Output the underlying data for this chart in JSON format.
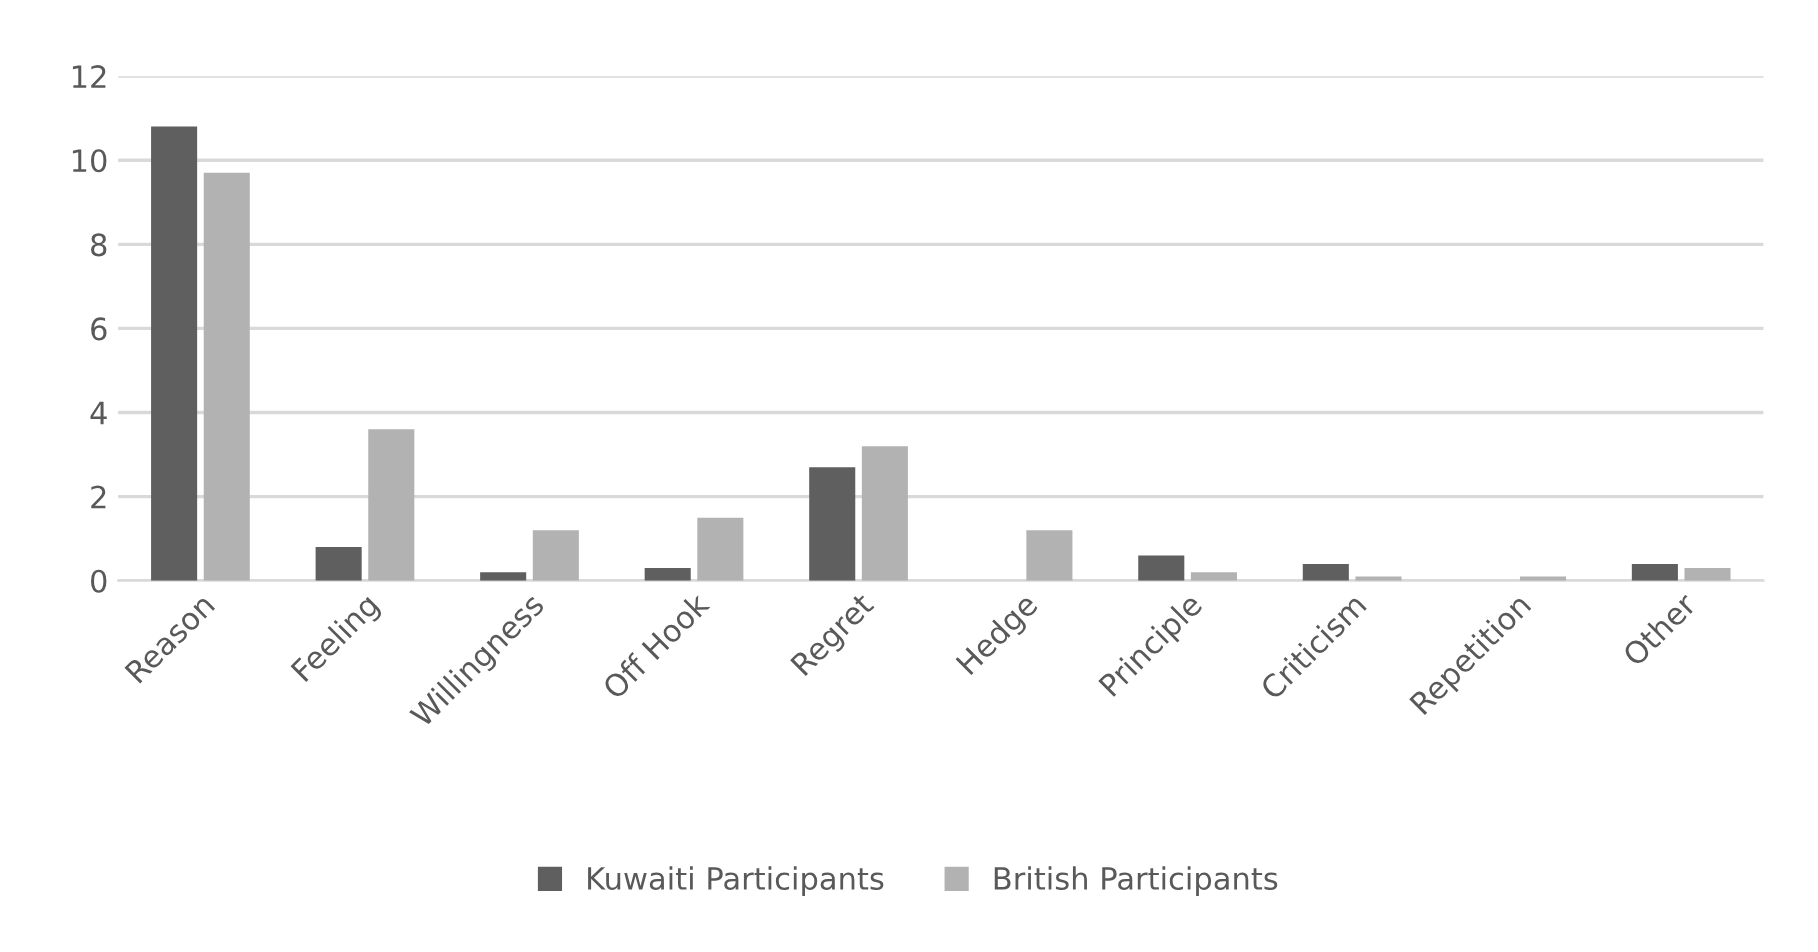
{
  "chart_data": {
    "type": "bar",
    "categories": [
      "Reason",
      "Feeling",
      "Willingness",
      "Off Hook",
      "Regret",
      "Hedge",
      "Principle",
      "Criticism",
      "Repetition",
      "Other"
    ],
    "series": [
      {
        "name": "Kuwaiti Participants",
        "color": "#5f5f5f",
        "values": [
          10.8,
          0.8,
          0.2,
          0.3,
          2.7,
          0,
          0.6,
          0.4,
          0,
          0.4
        ]
      },
      {
        "name": "British Participants",
        "color": "#b2b2b2",
        "values": [
          9.7,
          3.6,
          1.2,
          1.5,
          3.2,
          1.2,
          0.2,
          0.1,
          0.1,
          0.3
        ]
      }
    ],
    "ylim": [
      0,
      12
    ],
    "yticks": [
      0,
      2,
      4,
      6,
      8,
      10,
      12
    ],
    "grid": "y",
    "legend": "bottom"
  }
}
